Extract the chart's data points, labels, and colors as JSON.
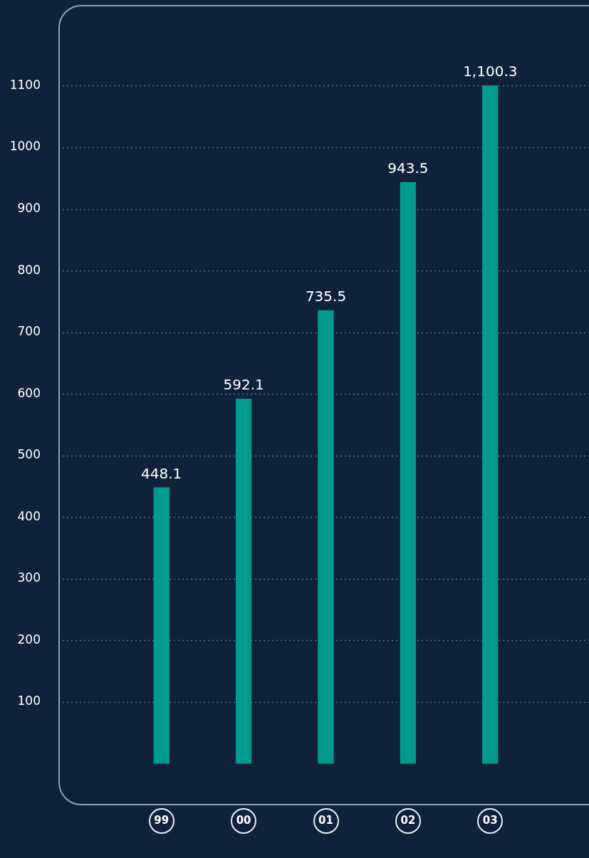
{
  "chart_data": {
    "type": "bar",
    "categories": [
      "99",
      "00",
      "01",
      "02",
      "03"
    ],
    "values": [
      448.1,
      592.1,
      735.5,
      943.5,
      1100.3
    ],
    "color": "#009a8e",
    "colors": [
      "#009a8e",
      "#009a8e",
      "#009a8e",
      "#009a8e",
      "#009a8e"
    ],
    "ylim": [
      -70,
      1230
    ],
    "yticks": [
      100,
      200,
      300,
      400,
      500,
      600,
      700,
      800,
      900,
      1000,
      1100
    ],
    "grid": "y",
    "legend": false,
    "value_labels": [
      "448.1",
      "592.1",
      "735.5",
      "943.5",
      "1,100.3"
    ]
  }
}
